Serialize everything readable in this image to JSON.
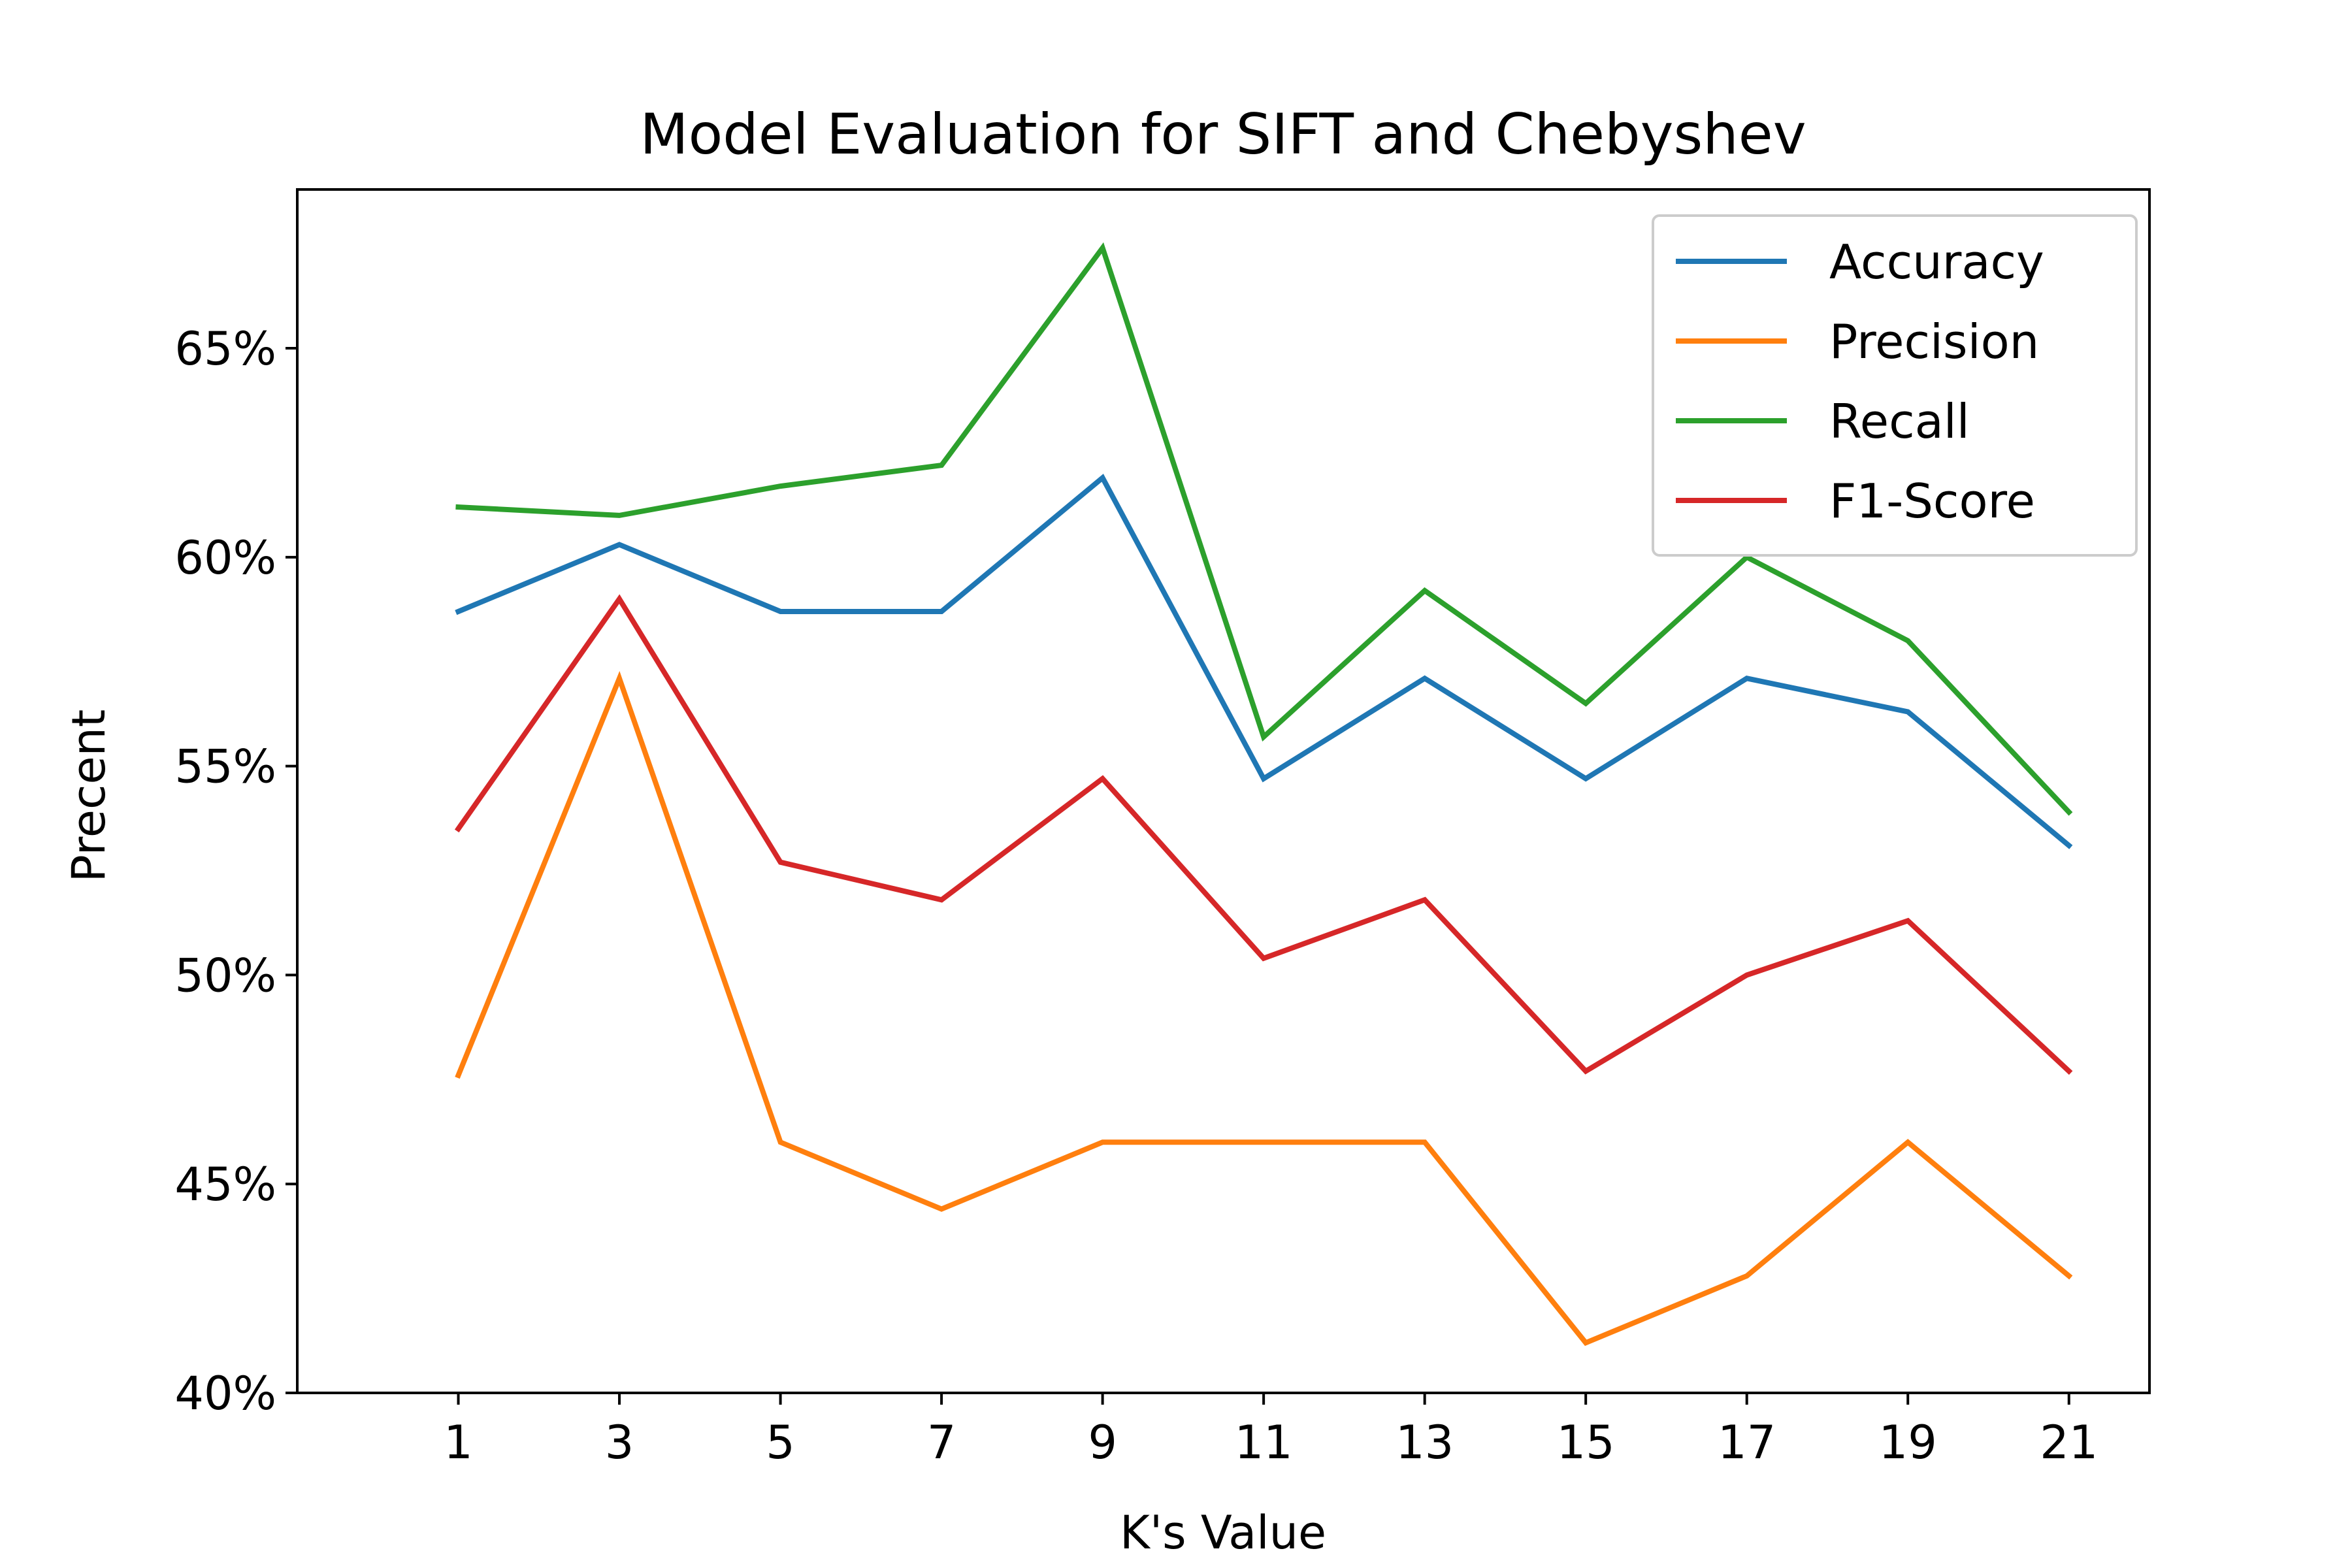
{
  "chart_data": {
    "type": "line",
    "title": "Model Evaluation for SIFT and Chebyshev",
    "xlabel": "K's Value",
    "ylabel": "Precent",
    "x": [
      1,
      3,
      5,
      7,
      9,
      11,
      13,
      15,
      17,
      19,
      21
    ],
    "xlim": [
      -1,
      22
    ],
    "ylim": [
      40,
      68.8
    ],
    "y_ticks": [
      40,
      45,
      50,
      55,
      60,
      65
    ],
    "y_tick_suffix": "%",
    "grid": false,
    "legend_position": "upper-right",
    "series": [
      {
        "name": "Accuracy",
        "color": "#1f77b4",
        "values": [
          58.7,
          60.3,
          58.7,
          58.7,
          61.9,
          54.7,
          57.1,
          54.7,
          57.1,
          56.3,
          53.1
        ]
      },
      {
        "name": "Precision",
        "color": "#ff7f0e",
        "values": [
          47.6,
          57.1,
          46.0,
          44.4,
          46.0,
          46.0,
          46.0,
          41.2,
          42.8,
          46.0,
          42.8
        ]
      },
      {
        "name": "Recall",
        "color": "#2ca02c",
        "values": [
          61.2,
          61.0,
          61.7,
          62.2,
          67.4,
          55.7,
          59.2,
          56.5,
          60.0,
          58.0,
          53.9
        ]
      },
      {
        "name": "F1-Score",
        "color": "#d62728",
        "values": [
          53.5,
          59.0,
          52.7,
          51.8,
          54.7,
          50.4,
          51.8,
          47.7,
          50.0,
          51.3,
          47.7
        ]
      }
    ]
  }
}
